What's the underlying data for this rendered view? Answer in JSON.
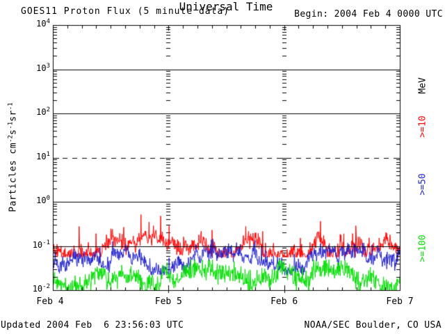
{
  "header": {
    "title": "GOES11 Proton Flux (5 minute data)",
    "begin_label": "Begin: 2004 Feb 4 0000 UTC"
  },
  "footer": {
    "updated_label": "Updated 2004 Feb  6 23:56:03 UTC",
    "credit_label": "NOAA/SEC Boulder, CO USA"
  },
  "chart_data": {
    "type": "line",
    "title": "GOES11 Proton Flux (5 minute data)",
    "xlabel": "Universal Time",
    "ylabel": "Particles cm-2 s-1 sr-1",
    "ylabel_parts": [
      [
        "t",
        "Particles  cm"
      ],
      [
        "sup",
        "-2"
      ],
      [
        "t",
        "s"
      ],
      [
        "sup",
        "-1"
      ],
      [
        "t",
        "sr"
      ],
      [
        "sup",
        "-1"
      ]
    ],
    "y_scale": "log",
    "ylim": [
      0.01,
      10000
    ],
    "y_tick_exponents": [
      4,
      3,
      2,
      1,
      0,
      -1,
      -2
    ],
    "x_tick_labels": [
      "Feb 4",
      "Feb 5",
      "Feb 6",
      "Feb 7"
    ],
    "x_range": {
      "start": "2004 Feb 4 0000 UTC",
      "days": 3
    },
    "samples_per_day": 288,
    "x_minor_tick_hours": 3,
    "grid": {
      "solid_line_decades": [
        3,
        2,
        0,
        -1
      ],
      "dashed_line_decades": [
        1
      ],
      "day_boundary_ghost_lines": [
        1,
        2
      ]
    },
    "legend": {
      "unit_label": "MeV",
      "unit_color": "#000000",
      "entries": [
        {
          "label": ">=10",
          "color": "#FF0000"
        },
        {
          "label": ">=50",
          "color": "#2222CC"
        },
        {
          "label": ">=100",
          "color": "#00DD00"
        }
      ]
    },
    "series": [
      {
        "name": ">=10 MeV",
        "color": "#FF0000",
        "typical_flux": 0.1,
        "approx_range": [
          0.06,
          0.5
        ],
        "mean_log10": -1.02,
        "noise_log10": 0.2,
        "spike_prob": 0.05,
        "spike_log10": 0.5,
        "clip_log10": [
          -1.25,
          -0.29
        ]
      },
      {
        "name": ">=50 MeV",
        "color": "#2222CC",
        "typical_flux": 0.05,
        "approx_range": [
          0.02,
          0.15
        ],
        "mean_log10": -1.34,
        "noise_log10": 0.19,
        "spike_prob": 0.04,
        "spike_log10": 0.35,
        "clip_log10": [
          -1.66,
          -0.84
        ]
      },
      {
        "name": ">=100 MeV",
        "color": "#00DD00",
        "typical_flux": 0.02,
        "approx_range": [
          0.01,
          0.05
        ],
        "mean_log10": -1.74,
        "noise_log10": 0.26,
        "spike_prob": 0.03,
        "spike_log10": 0.3,
        "clip_log10": [
          -2.0,
          -1.31
        ]
      }
    ],
    "seed": 20040204
  }
}
